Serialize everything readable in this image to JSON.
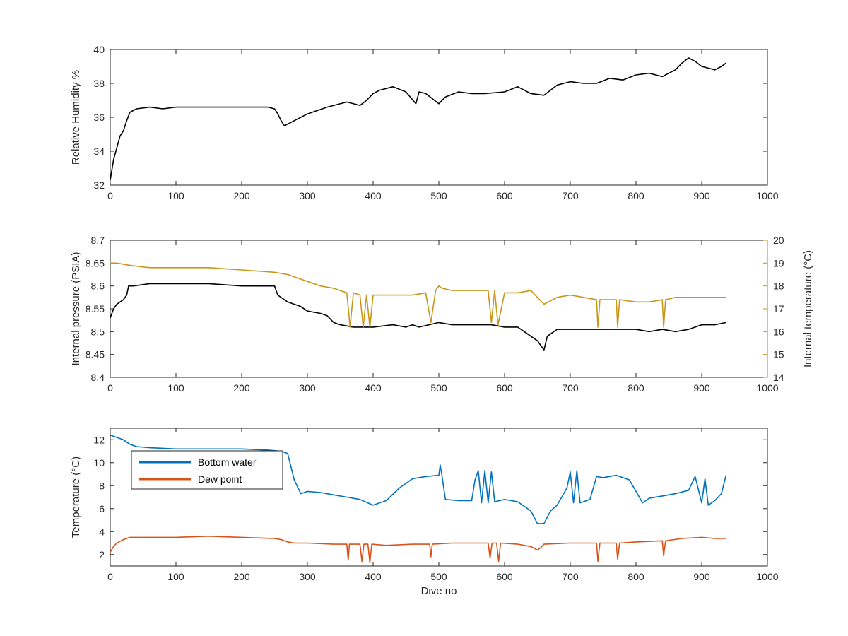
{
  "chart_data": [
    {
      "type": "line",
      "xlabel": "",
      "ylabel": "Relative Humidity %",
      "xlim": [
        0,
        1000
      ],
      "ylim": [
        32,
        40
      ],
      "xticks": [
        "0",
        "100",
        "200",
        "300",
        "400",
        "500",
        "600",
        "700",
        "800",
        "900",
        "1000"
      ],
      "yticks": [
        "32",
        "34",
        "36",
        "38",
        "40"
      ],
      "series": [
        {
          "color": "#000000",
          "x": [
            0,
            5,
            10,
            15,
            20,
            25,
            30,
            40,
            60,
            80,
            100,
            150,
            200,
            240,
            250,
            255,
            260,
            265,
            270,
            285,
            300,
            330,
            360,
            380,
            390,
            400,
            410,
            430,
            450,
            465,
            470,
            480,
            500,
            510,
            530,
            550,
            570,
            600,
            620,
            640,
            660,
            680,
            700,
            720,
            740,
            760,
            780,
            800,
            820,
            840,
            850,
            860,
            870,
            880,
            890,
            900,
            910,
            920,
            930,
            937
          ],
          "y": [
            32.3,
            33.5,
            34.2,
            34.9,
            35.2,
            35.8,
            36.3,
            36.5,
            36.6,
            36.5,
            36.6,
            36.6,
            36.6,
            36.6,
            36.5,
            36.2,
            35.8,
            35.5,
            35.6,
            35.9,
            36.2,
            36.6,
            36.9,
            36.7,
            37.0,
            37.4,
            37.6,
            37.8,
            37.5,
            36.8,
            37.5,
            37.4,
            36.8,
            37.2,
            37.5,
            37.4,
            37.4,
            37.5,
            37.8,
            37.4,
            37.3,
            37.9,
            38.1,
            38.0,
            38.0,
            38.3,
            38.2,
            38.5,
            38.6,
            38.4,
            38.6,
            38.8,
            39.2,
            39.5,
            39.3,
            39.0,
            38.9,
            38.8,
            39.0,
            39.2
          ]
        }
      ]
    },
    {
      "type": "line",
      "xlabel": "",
      "ylabel": "Internal pressure (PSIA)",
      "ylabel_right": "Internal temperature (°C)",
      "xlim": [
        0,
        1000
      ],
      "ylim": [
        8.4,
        8.7
      ],
      "ylim_right": [
        14,
        20
      ],
      "xticks": [
        "0",
        "100",
        "200",
        "300",
        "400",
        "500",
        "600",
        "700",
        "800",
        "900",
        "1000"
      ],
      "yticks": [
        "8.4",
        "8.45",
        "8.5",
        "8.55",
        "8.6",
        "8.65",
        "8.7"
      ],
      "yticks_right": [
        "14",
        "15",
        "16",
        "17",
        "18",
        "19",
        "20"
      ],
      "series": [
        {
          "axis": "left",
          "color": "#000000",
          "x": [
            0,
            5,
            10,
            15,
            20,
            25,
            28,
            35,
            60,
            100,
            150,
            200,
            230,
            250,
            255,
            270,
            290,
            300,
            320,
            330,
            340,
            350,
            370,
            400,
            430,
            450,
            460,
            470,
            500,
            520,
            550,
            580,
            600,
            620,
            630,
            640,
            650,
            655,
            660,
            665,
            680,
            700,
            720,
            750,
            780,
            800,
            820,
            840,
            860,
            880,
            900,
            920,
            937
          ],
          "y": [
            8.53,
            8.55,
            8.56,
            8.565,
            8.57,
            8.58,
            8.6,
            8.6,
            8.605,
            8.605,
            8.605,
            8.6,
            8.6,
            8.6,
            8.58,
            8.565,
            8.555,
            8.545,
            8.54,
            8.535,
            8.52,
            8.515,
            8.51,
            8.51,
            8.515,
            8.51,
            8.515,
            8.51,
            8.52,
            8.515,
            8.515,
            8.515,
            8.51,
            8.51,
            8.5,
            8.49,
            8.48,
            8.47,
            8.46,
            8.49,
            8.505,
            8.505,
            8.505,
            8.505,
            8.505,
            8.505,
            8.5,
            8.505,
            8.5,
            8.505,
            8.515,
            8.515,
            8.52
          ]
        },
        {
          "axis": "right",
          "color": "#C9961A",
          "x": [
            0,
            10,
            30,
            60,
            100,
            150,
            200,
            250,
            270,
            290,
            300,
            320,
            340,
            350,
            360,
            365,
            370,
            380,
            385,
            390,
            395,
            400,
            430,
            460,
            480,
            488,
            495,
            500,
            505,
            520,
            550,
            575,
            580,
            585,
            590,
            600,
            620,
            640,
            650,
            660,
            680,
            700,
            720,
            740,
            742,
            745,
            760,
            770,
            772,
            775,
            800,
            820,
            840,
            842,
            845,
            860,
            880,
            900,
            920,
            937
          ],
          "y": [
            19.0,
            19.0,
            18.9,
            18.8,
            18.8,
            18.8,
            18.7,
            18.6,
            18.5,
            18.3,
            18.2,
            18.0,
            17.9,
            17.8,
            17.7,
            16.2,
            17.7,
            17.6,
            16.2,
            17.6,
            16.2,
            17.6,
            17.6,
            17.6,
            17.7,
            16.4,
            17.8,
            18.0,
            17.9,
            17.8,
            17.8,
            17.8,
            16.4,
            17.8,
            16.3,
            17.7,
            17.7,
            17.8,
            17.5,
            17.2,
            17.5,
            17.6,
            17.5,
            17.4,
            16.2,
            17.4,
            17.4,
            17.4,
            16.2,
            17.4,
            17.3,
            17.3,
            17.4,
            16.2,
            17.4,
            17.5,
            17.5,
            17.5,
            17.5,
            17.5
          ]
        }
      ]
    },
    {
      "type": "line",
      "xlabel": "Dive no",
      "ylabel": "Temperature (°C)",
      "xlim": [
        0,
        1000
      ],
      "ylim": [
        1,
        13
      ],
      "xticks": [
        "0",
        "100",
        "200",
        "300",
        "400",
        "500",
        "600",
        "700",
        "800",
        "900",
        "1000"
      ],
      "yticks": [
        "2",
        "4",
        "6",
        "8",
        "10",
        "12"
      ],
      "legend": [
        "Bottom water",
        "Dew point"
      ],
      "legend_position": "top-left",
      "series": [
        {
          "name": "Bottom water",
          "color": "#0072BD",
          "x": [
            0,
            10,
            20,
            30,
            40,
            60,
            100,
            150,
            200,
            240,
            260,
            270,
            280,
            290,
            300,
            320,
            340,
            360,
            380,
            400,
            420,
            440,
            460,
            480,
            500,
            502,
            505,
            510,
            530,
            550,
            555,
            560,
            565,
            570,
            575,
            580,
            585,
            600,
            620,
            640,
            650,
            660,
            670,
            680,
            695,
            700,
            705,
            710,
            715,
            720,
            730,
            740,
            750,
            770,
            790,
            800,
            810,
            820,
            840,
            860,
            880,
            890,
            900,
            905,
            910,
            920,
            930,
            937
          ],
          "y": [
            12.4,
            12.2,
            12.0,
            11.6,
            11.4,
            11.3,
            11.2,
            11.2,
            11.2,
            11.1,
            11.0,
            10.8,
            8.5,
            7.3,
            7.5,
            7.4,
            7.2,
            7.0,
            6.8,
            6.3,
            6.7,
            7.8,
            8.6,
            8.8,
            8.9,
            9.8,
            8.8,
            6.8,
            6.7,
            6.7,
            8.5,
            9.3,
            6.5,
            9.3,
            6.5,
            9.2,
            6.6,
            6.8,
            6.6,
            5.8,
            4.7,
            4.7,
            5.8,
            6.3,
            7.8,
            9.2,
            6.5,
            9.3,
            6.5,
            6.6,
            6.8,
            8.8,
            8.7,
            8.9,
            8.5,
            7.5,
            6.5,
            6.9,
            7.1,
            7.3,
            7.6,
            8.8,
            6.5,
            8.6,
            6.3,
            6.7,
            7.3,
            8.9
          ]
        },
        {
          "name": "Dew point",
          "color": "#D95319",
          "x": [
            0,
            5,
            10,
            20,
            30,
            50,
            100,
            150,
            200,
            250,
            260,
            270,
            280,
            300,
            340,
            360,
            362,
            364,
            380,
            383,
            386,
            392,
            395,
            398,
            420,
            460,
            486,
            488,
            490,
            520,
            560,
            575,
            578,
            581,
            588,
            591,
            594,
            620,
            640,
            650,
            655,
            660,
            700,
            740,
            742,
            745,
            770,
            772,
            775,
            800,
            840,
            842,
            845,
            870,
            900,
            920,
            937
          ],
          "y": [
            2.2,
            2.7,
            3.0,
            3.3,
            3.5,
            3.5,
            3.5,
            3.6,
            3.5,
            3.4,
            3.3,
            3.1,
            3.0,
            3.0,
            2.9,
            2.9,
            1.5,
            2.9,
            2.9,
            1.4,
            2.9,
            2.9,
            1.3,
            2.9,
            2.8,
            2.9,
            2.9,
            1.8,
            2.9,
            3.0,
            3.0,
            3.0,
            1.7,
            3.0,
            3.0,
            1.4,
            3.0,
            2.9,
            2.7,
            2.4,
            2.6,
            2.9,
            3.0,
            3.0,
            1.4,
            3.0,
            3.0,
            1.6,
            3.0,
            3.1,
            3.2,
            1.9,
            3.2,
            3.4,
            3.5,
            3.4,
            3.4
          ]
        }
      ]
    }
  ]
}
